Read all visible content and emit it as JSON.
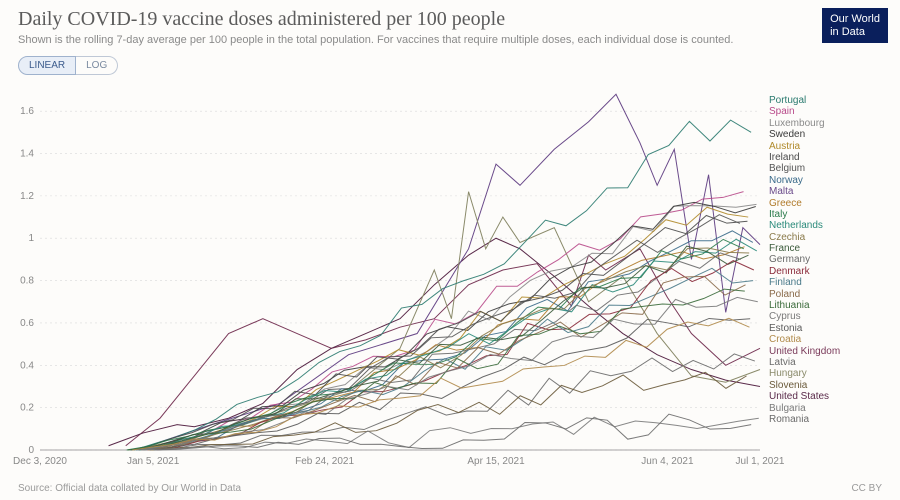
{
  "header": {
    "title": "Daily COVID-19 vaccine doses administered per 100 people",
    "subtitle": "Shown is the rolling 7-day average per 100 people in the total population. For vaccines that require multiple doses, each individual dose is counted.",
    "logo_line1": "Our World",
    "logo_line2": "in Data"
  },
  "scale_toggle": {
    "active": "LINEAR",
    "inactive": "LOG"
  },
  "footer": {
    "source": "Source: Official data collated by Our World in Data",
    "license": "CC BY"
  },
  "chart": {
    "type": "line",
    "xlim": [
      0,
      210
    ],
    "ylim": [
      0,
      1.7
    ],
    "yticks": [
      0,
      0.2,
      0.4,
      0.6,
      0.8,
      1,
      1.2,
      1.4,
      1.6
    ],
    "xticks": [
      {
        "v": 0,
        "label": "Dec 3, 2020"
      },
      {
        "v": 33,
        "label": "Jan 5, 2021"
      },
      {
        "v": 83,
        "label": "Feb 24, 2021"
      },
      {
        "v": 133,
        "label": "Apr 15, 2021"
      },
      {
        "v": 183,
        "label": "Jun 4, 2021"
      },
      {
        "v": 210,
        "label": "Jul 1, 2021"
      }
    ],
    "grid_color": "#d9d9d9",
    "axis_color": "#888888",
    "tick_font_size": 10,
    "line_width": 1.0,
    "countries": [
      {
        "name": "Portugal",
        "color": "#2a7a6f",
        "end": 1.5
      },
      {
        "name": "Spain",
        "color": "#b84a8a",
        "end": 1.22
      },
      {
        "name": "Luxembourg",
        "color": "#8a8a8a",
        "end": 1.16
      },
      {
        "name": "Sweden",
        "color": "#3a3a3a",
        "end": 1.15
      },
      {
        "name": "Austria",
        "color": "#b08a2a",
        "end": 1.1
      },
      {
        "name": "Ireland",
        "color": "#4a4a4a",
        "end": 1.08
      },
      {
        "name": "Belgium",
        "color": "#555555",
        "end": 1.07
      },
      {
        "name": "Norway",
        "color": "#3a6a8a",
        "end": 0.98
      },
      {
        "name": "Malta",
        "color": "#6a4a8a",
        "end": 0.97
      },
      {
        "name": "Greece",
        "color": "#b07a2a",
        "end": 0.96
      },
      {
        "name": "Italy",
        "color": "#2a7a4a",
        "end": 0.95
      },
      {
        "name": "Netherlands",
        "color": "#2a8a7a",
        "end": 0.94
      },
      {
        "name": "Czechia",
        "color": "#8a7a4a",
        "end": 0.93
      },
      {
        "name": "France",
        "color": "#3a5a3a",
        "end": 0.92
      },
      {
        "name": "Germany",
        "color": "#6a6a6a",
        "end": 0.9
      },
      {
        "name": "Denmark",
        "color": "#8a2a3a",
        "end": 0.85
      },
      {
        "name": "Finland",
        "color": "#4a7a8a",
        "end": 0.8
      },
      {
        "name": "Poland",
        "color": "#8a6a4a",
        "end": 0.78
      },
      {
        "name": "Lithuania",
        "color": "#3a6a3a",
        "end": 0.75
      },
      {
        "name": "Cyprus",
        "color": "#7a7a7a",
        "end": 0.7
      },
      {
        "name": "Estonia",
        "color": "#5a5a5a",
        "end": 0.62
      },
      {
        "name": "Croatia",
        "color": "#b08a4a",
        "end": 0.58
      },
      {
        "name": "United Kingdom",
        "color": "#7a3a5a",
        "end": 0.48
      },
      {
        "name": "Latvia",
        "color": "#6a6a6a",
        "end": 0.42
      },
      {
        "name": "Hungary",
        "color": "#8a8a6a",
        "end": 0.38
      },
      {
        "name": "Slovenia",
        "color": "#6a5a3a",
        "end": 0.35
      },
      {
        "name": "United States",
        "color": "#5a2a4a",
        "end": 0.3
      },
      {
        "name": "Bulgaria",
        "color": "#7a7a7a",
        "end": 0.15
      },
      {
        "name": "Romania",
        "color": "#6a6a6a",
        "end": 0.12
      }
    ],
    "series_uk": {
      "name": "United Kingdom",
      "color": "#7a3a5a",
      "points": [
        [
          25,
          0.02
        ],
        [
          35,
          0.15
        ],
        [
          45,
          0.35
        ],
        [
          55,
          0.55
        ],
        [
          65,
          0.62
        ],
        [
          75,
          0.55
        ],
        [
          85,
          0.48
        ],
        [
          95,
          0.52
        ],
        [
          105,
          0.58
        ],
        [
          115,
          0.62
        ],
        [
          125,
          0.78
        ],
        [
          135,
          0.85
        ],
        [
          145,
          0.88
        ],
        [
          155,
          0.68
        ],
        [
          160,
          0.92
        ],
        [
          165,
          0.85
        ],
        [
          175,
          0.95
        ],
        [
          183,
          0.72
        ],
        [
          190,
          0.55
        ],
        [
          200,
          0.4
        ],
        [
          210,
          0.48
        ]
      ]
    },
    "series_us": {
      "name": "United States",
      "color": "#5a2a4a",
      "points": [
        [
          20,
          0.02
        ],
        [
          30,
          0.08
        ],
        [
          40,
          0.12
        ],
        [
          45,
          0.11
        ],
        [
          55,
          0.15
        ],
        [
          65,
          0.22
        ],
        [
          75,
          0.38
        ],
        [
          85,
          0.48
        ],
        [
          95,
          0.55
        ],
        [
          105,
          0.62
        ],
        [
          115,
          0.78
        ],
        [
          125,
          0.92
        ],
        [
          133,
          1.0
        ],
        [
          140,
          0.95
        ],
        [
          150,
          0.82
        ],
        [
          160,
          0.68
        ],
        [
          170,
          0.55
        ],
        [
          180,
          0.45
        ],
        [
          190,
          0.38
        ],
        [
          200,
          0.33
        ],
        [
          210,
          0.3
        ]
      ]
    },
    "series_malta": {
      "name": "Malta",
      "color": "#6a4a8a",
      "points": [
        [
          30,
          0.01
        ],
        [
          50,
          0.12
        ],
        [
          70,
          0.22
        ],
        [
          90,
          0.45
        ],
        [
          110,
          0.55
        ],
        [
          125,
          0.95
        ],
        [
          133,
          1.35
        ],
        [
          140,
          1.25
        ],
        [
          150,
          1.42
        ],
        [
          160,
          1.55
        ],
        [
          168,
          1.68
        ],
        [
          175,
          1.45
        ],
        [
          180,
          1.25
        ],
        [
          185,
          1.42
        ],
        [
          190,
          0.9
        ],
        [
          195,
          1.3
        ],
        [
          200,
          0.65
        ],
        [
          205,
          1.05
        ],
        [
          210,
          0.97
        ]
      ]
    },
    "series_hungary": {
      "name": "Hungary",
      "color": "#8a8a6a",
      "points": [
        [
          30,
          0.01
        ],
        [
          50,
          0.08
        ],
        [
          70,
          0.18
        ],
        [
          90,
          0.28
        ],
        [
          105,
          0.48
        ],
        [
          115,
          0.85
        ],
        [
          120,
          0.62
        ],
        [
          125,
          1.22
        ],
        [
          130,
          0.95
        ],
        [
          135,
          1.1
        ],
        [
          140,
          0.98
        ],
        [
          150,
          1.05
        ],
        [
          160,
          0.7
        ],
        [
          170,
          0.82
        ],
        [
          180,
          0.55
        ],
        [
          190,
          0.35
        ],
        [
          200,
          0.32
        ],
        [
          210,
          0.38
        ]
      ]
    }
  }
}
